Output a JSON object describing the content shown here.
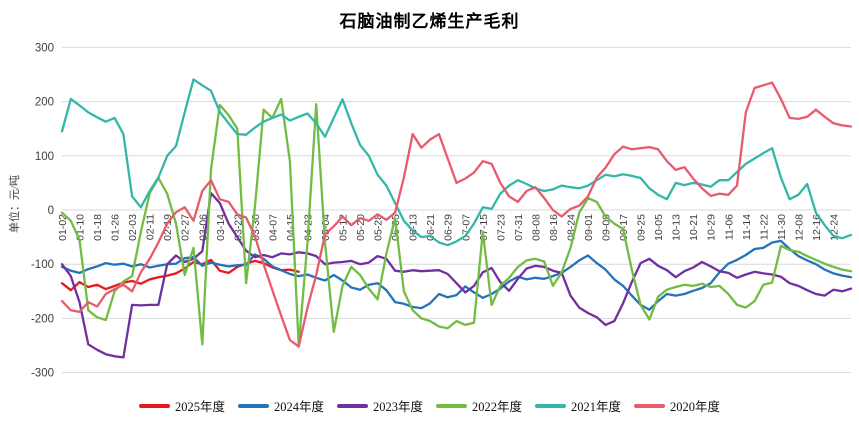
{
  "title": "石脑油制乙烯生产毛利",
  "y_axis": {
    "unit_label": "单位：元/吨",
    "ticks": [
      300,
      200,
      100,
      0,
      -100,
      -200,
      -300
    ],
    "min": -300,
    "max": 300
  },
  "x_axis": {
    "tick_labels": [
      "01-02",
      "01-10",
      "01-18",
      "01-26",
      "02-03",
      "02-11",
      "02-19",
      "02-27",
      "03-06",
      "03-14",
      "03-22",
      "03-30",
      "04-07",
      "04-15",
      "04-23",
      "05-04",
      "05-12",
      "05-20",
      "05-28",
      "06-05",
      "06-13",
      "06-21",
      "06-29",
      "07-07",
      "07-15",
      "07-23",
      "07-31",
      "08-08",
      "08-16",
      "08-24",
      "09-01",
      "09-09",
      "09-17",
      "09-25",
      "10-05",
      "10-13",
      "10-21",
      "10-29",
      "11-06",
      "11-14",
      "11-22",
      "11-30",
      "12-08",
      "12-16",
      "12-24"
    ]
  },
  "colors": {
    "grid": "#d9d9d9",
    "axis_text": "#404040",
    "title_text": "#000000"
  },
  "chart_data": {
    "type": "line",
    "title": "石脑油制乙烯生产毛利",
    "ylabel": "单位：元/吨",
    "ylim": [
      -300,
      300
    ],
    "grid": "horizontal",
    "legend_position": "bottom",
    "x_tick_every": 2,
    "x_dates": [
      "01-02",
      "01-06",
      "01-10",
      "01-14",
      "01-18",
      "01-22",
      "01-26",
      "01-30",
      "02-03",
      "02-07",
      "02-11",
      "02-15",
      "02-19",
      "02-23",
      "02-27",
      "03-02",
      "03-06",
      "03-10",
      "03-14",
      "03-18",
      "03-22",
      "03-26",
      "03-30",
      "04-03",
      "04-07",
      "04-11",
      "04-15",
      "04-19",
      "04-23",
      "04-28",
      "05-04",
      "05-08",
      "05-12",
      "05-16",
      "05-20",
      "05-24",
      "05-28",
      "06-01",
      "06-05",
      "06-09",
      "06-13",
      "06-17",
      "06-21",
      "06-25",
      "06-29",
      "07-03",
      "07-07",
      "07-11",
      "07-15",
      "07-19",
      "07-23",
      "07-27",
      "07-31",
      "08-04",
      "08-08",
      "08-12",
      "08-16",
      "08-20",
      "08-24",
      "08-28",
      "09-01",
      "09-05",
      "09-09",
      "09-13",
      "09-17",
      "09-21",
      "09-25",
      "09-30",
      "10-05",
      "10-09",
      "10-13",
      "10-17",
      "10-21",
      "10-25",
      "10-29",
      "11-02",
      "11-06",
      "11-10",
      "11-14",
      "11-18",
      "11-22",
      "11-26",
      "11-30",
      "12-04",
      "12-08",
      "12-12",
      "12-16",
      "12-20",
      "12-24",
      "12-28",
      "12-31"
    ],
    "series": [
      {
        "name": "2025年度",
        "color": "#e8191c",
        "values": [
          -135,
          -148,
          -133,
          -142,
          -138,
          -146,
          -140,
          -134,
          -131,
          -136,
          -128,
          -124,
          -121,
          -117,
          -108,
          -96,
          -100,
          -92,
          -112,
          -116,
          -105,
          -99,
          -94,
          -98,
          -106,
          -111,
          -110,
          -114
        ]
      },
      {
        "name": "2024年度",
        "color": "#2473b8",
        "values": [
          -105,
          -112,
          -116,
          -109,
          -104,
          -98,
          -101,
          -99,
          -104,
          -100,
          -106,
          -103,
          -100,
          -99,
          -89,
          -87,
          -103,
          -97,
          -101,
          -104,
          -102,
          -101,
          -82,
          -90,
          -104,
          -111,
          -118,
          -122,
          -119,
          -125,
          -130,
          -120,
          -130,
          -143,
          -147,
          -138,
          -135,
          -148,
          -170,
          -173,
          -179,
          -181,
          -172,
          -155,
          -161,
          -157,
          -141,
          -152,
          -162,
          -155,
          -145,
          -132,
          -123,
          -128,
          -125,
          -127,
          -122,
          -116,
          -105,
          -93,
          -84,
          -98,
          -110,
          -128,
          -140,
          -158,
          -175,
          -184,
          -168,
          -155,
          -158,
          -155,
          -149,
          -144,
          -135,
          -115,
          -99,
          -92,
          -83,
          -72,
          -70,
          -60,
          -57,
          -72,
          -85,
          -93,
          -100,
          -110,
          -117,
          -121,
          -124
        ]
      },
      {
        "name": "2023年度",
        "color": "#7030a0",
        "values": [
          -100,
          -122,
          -170,
          -248,
          -258,
          -266,
          -270,
          -272,
          -175,
          -176,
          -175,
          -175,
          -100,
          -84,
          -96,
          -90,
          -76,
          31,
          13,
          -25,
          -50,
          -75,
          -87,
          -83,
          -87,
          -80,
          -82,
          -78,
          -80,
          -85,
          -100,
          -97,
          -96,
          -94,
          -100,
          -97,
          -85,
          -90,
          -112,
          -114,
          -111,
          -113,
          -112,
          -111,
          -118,
          -135,
          -152,
          -140,
          -115,
          -107,
          -133,
          -149,
          -127,
          -108,
          -103,
          -105,
          -112,
          -116,
          -158,
          -180,
          -190,
          -198,
          -212,
          -205,
          -172,
          -133,
          -98,
          -90,
          -103,
          -111,
          -124,
          -113,
          -106,
          -96,
          -104,
          -113,
          -116,
          -125,
          -119,
          -114,
          -117,
          -119,
          -123,
          -135,
          -140,
          -148,
          -155,
          -158,
          -147,
          -150,
          -145
        ]
      },
      {
        "name": "2022年度",
        "color": "#72bc44",
        "values": [
          -5,
          -20,
          -55,
          -185,
          -198,
          -203,
          -150,
          -132,
          -122,
          -40,
          31,
          59,
          30,
          -25,
          -120,
          -70,
          -248,
          75,
          194,
          175,
          150,
          -135,
          5,
          185,
          170,
          205,
          90,
          -250,
          -60,
          195,
          -60,
          -225,
          -140,
          -105,
          -120,
          -145,
          -165,
          -80,
          -15,
          -150,
          -185,
          -200,
          -205,
          -215,
          -218,
          -205,
          -212,
          -208,
          -40,
          -175,
          -140,
          -125,
          -105,
          -93,
          -90,
          -95,
          -140,
          -115,
          -70,
          -5,
          22,
          15,
          -12,
          -25,
          -35,
          -110,
          -175,
          -202,
          -160,
          -147,
          -142,
          -138,
          -140,
          -136,
          -142,
          -140,
          -155,
          -175,
          -180,
          -168,
          -138,
          -134,
          -66,
          -74,
          -77,
          -85,
          -92,
          -99,
          -105,
          -110,
          -113
        ]
      },
      {
        "name": "2021年度",
        "color": "#32b7a9",
        "values": [
          145,
          205,
          193,
          180,
          171,
          163,
          170,
          140,
          25,
          5,
          35,
          60,
          100,
          118,
          180,
          241,
          230,
          220,
          181,
          160,
          140,
          139,
          152,
          163,
          170,
          176,
          165,
          172,
          178,
          160,
          135,
          170,
          204,
          160,
          120,
          100,
          65,
          45,
          13,
          -20,
          -38,
          -50,
          -48,
          -60,
          -65,
          -58,
          -48,
          -25,
          5,
          2,
          30,
          45,
          55,
          48,
          40,
          35,
          38,
          45,
          42,
          40,
          45,
          55,
          65,
          62,
          66,
          63,
          59,
          40,
          28,
          20,
          50,
          46,
          50,
          47,
          43,
          55,
          55,
          70,
          85,
          95,
          105,
          114,
          60,
          20,
          28,
          48,
          -5,
          -28,
          -48,
          -52,
          -46
        ]
      },
      {
        "name": "2020年度",
        "color": "#e85b6d",
        "values": [
          -168,
          -185,
          -188,
          -170,
          -178,
          -155,
          -146,
          -138,
          -150,
          -115,
          -90,
          -60,
          -25,
          -4,
          5,
          -20,
          35,
          55,
          20,
          15,
          -8,
          -14,
          -48,
          -100,
          -148,
          -195,
          -240,
          -252,
          -180,
          -120,
          -45,
          -30,
          -12,
          -28,
          -15,
          -20,
          -8,
          -18,
          -5,
          60,
          140,
          115,
          130,
          140,
          95,
          50,
          58,
          69,
          90,
          85,
          50,
          25,
          15,
          35,
          42,
          22,
          0,
          -12,
          2,
          8,
          25,
          60,
          78,
          103,
          117,
          112,
          114,
          116,
          112,
          90,
          74,
          79,
          58,
          40,
          26,
          30,
          28,
          45,
          180,
          225,
          230,
          235,
          205,
          170,
          168,
          172,
          185,
          172,
          160,
          156,
          154
        ]
      }
    ]
  }
}
